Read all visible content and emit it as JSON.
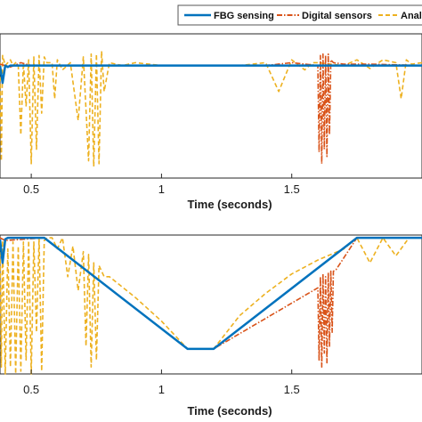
{
  "chart_data": [
    {
      "type": "line",
      "xlabel": "Time (seconds)",
      "xlim": [
        0.38,
        2.0
      ],
      "ylim": [
        0,
        1
      ],
      "x_ticks": [
        0.5,
        1,
        1.5
      ],
      "x_tick_labels": [
        "0.5",
        "1",
        "1.5"
      ],
      "grid": false,
      "legend": {
        "placement": "top",
        "entries": [
          {
            "label": "FBG sensing",
            "color": "#0072BD",
            "style": "solid"
          },
          {
            "label": "Digital sensors",
            "color": "#D95319",
            "style": "dashdot"
          },
          {
            "label": "Analo",
            "color": "#EDB120",
            "style": "dashed"
          }
        ]
      },
      "series": [
        {
          "name": "FBG sensing",
          "color": "#0072BD",
          "style": "solid",
          "x": [
            0.38,
            0.39,
            0.4,
            0.41,
            0.42,
            0.6,
            1.0,
            1.4,
            1.6,
            1.8,
            2.0
          ],
          "y": [
            0.78,
            0.66,
            0.78,
            0.77,
            0.78,
            0.78,
            0.78,
            0.78,
            0.78,
            0.78,
            0.78
          ]
        },
        {
          "name": "Digital sensors",
          "color": "#D95319",
          "style": "dashdot",
          "x": [
            0.38,
            0.42,
            0.46,
            0.5,
            0.6,
            0.8,
            1.0,
            1.2,
            1.4,
            1.5,
            1.6,
            1.605,
            1.61,
            1.615,
            1.62,
            1.625,
            1.63,
            1.635,
            1.64,
            1.645,
            1.65,
            1.66,
            1.7,
            1.8,
            2.0
          ],
          "y": [
            0.79,
            0.77,
            0.8,
            0.78,
            0.78,
            0.78,
            0.78,
            0.78,
            0.78,
            0.8,
            0.78,
            0.18,
            0.85,
            0.1,
            0.86,
            0.2,
            0.85,
            0.15,
            0.86,
            0.3,
            0.82,
            0.8,
            0.79,
            0.79,
            0.78
          ]
        },
        {
          "name": "Analo",
          "color": "#EDB120",
          "style": "dashed",
          "x": [
            0.38,
            0.385,
            0.39,
            0.4,
            0.41,
            0.42,
            0.43,
            0.44,
            0.45,
            0.46,
            0.47,
            0.48,
            0.49,
            0.5,
            0.51,
            0.52,
            0.53,
            0.54,
            0.55,
            0.56,
            0.58,
            0.59,
            0.6,
            0.62,
            0.65,
            0.68,
            0.7,
            0.72,
            0.73,
            0.74,
            0.75,
            0.76,
            0.77,
            0.78,
            0.8,
            0.85,
            0.9,
            1.0,
            1.1,
            1.2,
            1.3,
            1.4,
            1.45,
            1.5,
            1.55,
            1.58,
            1.6,
            1.7,
            1.75,
            1.8,
            1.85,
            1.9,
            1.92,
            1.94,
            1.96,
            2.0
          ],
          "y": [
            0.8,
            0.12,
            0.85,
            0.78,
            0.8,
            0.82,
            0.78,
            0.8,
            0.78,
            0.3,
            0.8,
            0.5,
            0.82,
            0.1,
            0.84,
            0.2,
            0.85,
            0.45,
            0.84,
            0.8,
            0.8,
            0.55,
            0.82,
            0.75,
            0.8,
            0.4,
            0.84,
            0.12,
            0.86,
            0.08,
            0.86,
            0.1,
            0.88,
            0.6,
            0.8,
            0.78,
            0.8,
            0.78,
            0.78,
            0.78,
            0.78,
            0.8,
            0.6,
            0.82,
            0.75,
            0.8,
            0.8,
            0.78,
            0.82,
            0.76,
            0.82,
            0.8,
            0.55,
            0.82,
            0.79,
            0.8
          ]
        }
      ]
    },
    {
      "type": "line",
      "xlabel": "Time (seconds)",
      "xlim": [
        0.38,
        2.0
      ],
      "ylim": [
        0,
        1
      ],
      "x_ticks": [
        0.5,
        1,
        1.5
      ],
      "x_tick_labels": [
        "0.5",
        "1",
        "1.5"
      ],
      "grid": false,
      "series": [
        {
          "name": "FBG sensing",
          "color": "#0072BD",
          "style": "solid",
          "x": [
            0.38,
            0.39,
            0.4,
            0.41,
            0.55,
            1.1,
            1.2,
            1.75,
            2.0
          ],
          "y": [
            0.97,
            0.8,
            0.97,
            0.98,
            0.98,
            0.18,
            0.18,
            0.98,
            0.98
          ]
        },
        {
          "name": "Digital sensors",
          "color": "#D95319",
          "style": "dashdot",
          "x": [
            0.38,
            0.4,
            0.55,
            1.1,
            1.2,
            1.6,
            1.605,
            1.61,
            1.615,
            1.62,
            1.625,
            1.63,
            1.635,
            1.64,
            1.645,
            1.65,
            1.655,
            1.66,
            1.67,
            1.75,
            2.0
          ],
          "y": [
            0.98,
            0.96,
            0.98,
            0.18,
            0.18,
            0.62,
            0.1,
            0.7,
            0.05,
            0.72,
            0.15,
            0.7,
            0.08,
            0.73,
            0.2,
            0.74,
            0.3,
            0.74,
            0.75,
            0.98,
            0.98
          ]
        },
        {
          "name": "Analo",
          "color": "#EDB120",
          "style": "dashed",
          "x": [
            0.38,
            0.385,
            0.39,
            0.4,
            0.41,
            0.42,
            0.43,
            0.44,
            0.45,
            0.46,
            0.47,
            0.48,
            0.49,
            0.5,
            0.51,
            0.52,
            0.53,
            0.54,
            0.55,
            0.56,
            0.58,
            0.6,
            0.62,
            0.64,
            0.66,
            0.68,
            0.7,
            0.71,
            0.72,
            0.73,
            0.74,
            0.75,
            0.76,
            0.78,
            0.8,
            0.9,
            1.0,
            1.1,
            1.2,
            1.3,
            1.4,
            1.5,
            1.6,
            1.7,
            1.75,
            1.8,
            1.85,
            1.9,
            1.95,
            2.0
          ],
          "y": [
            0.98,
            0.05,
            0.96,
            0.0,
            0.9,
            0.05,
            0.95,
            0.0,
            0.92,
            0.02,
            0.95,
            0.1,
            0.96,
            0.0,
            0.95,
            0.3,
            0.98,
            0.02,
            0.96,
            0.98,
            0.98,
            0.9,
            0.98,
            0.7,
            0.92,
            0.6,
            0.88,
            0.2,
            0.86,
            0.05,
            0.8,
            0.1,
            0.78,
            0.7,
            0.7,
            0.55,
            0.38,
            0.18,
            0.18,
            0.42,
            0.58,
            0.72,
            0.82,
            0.9,
            0.98,
            0.8,
            0.98,
            0.85,
            0.98,
            0.98
          ]
        }
      ]
    }
  ]
}
